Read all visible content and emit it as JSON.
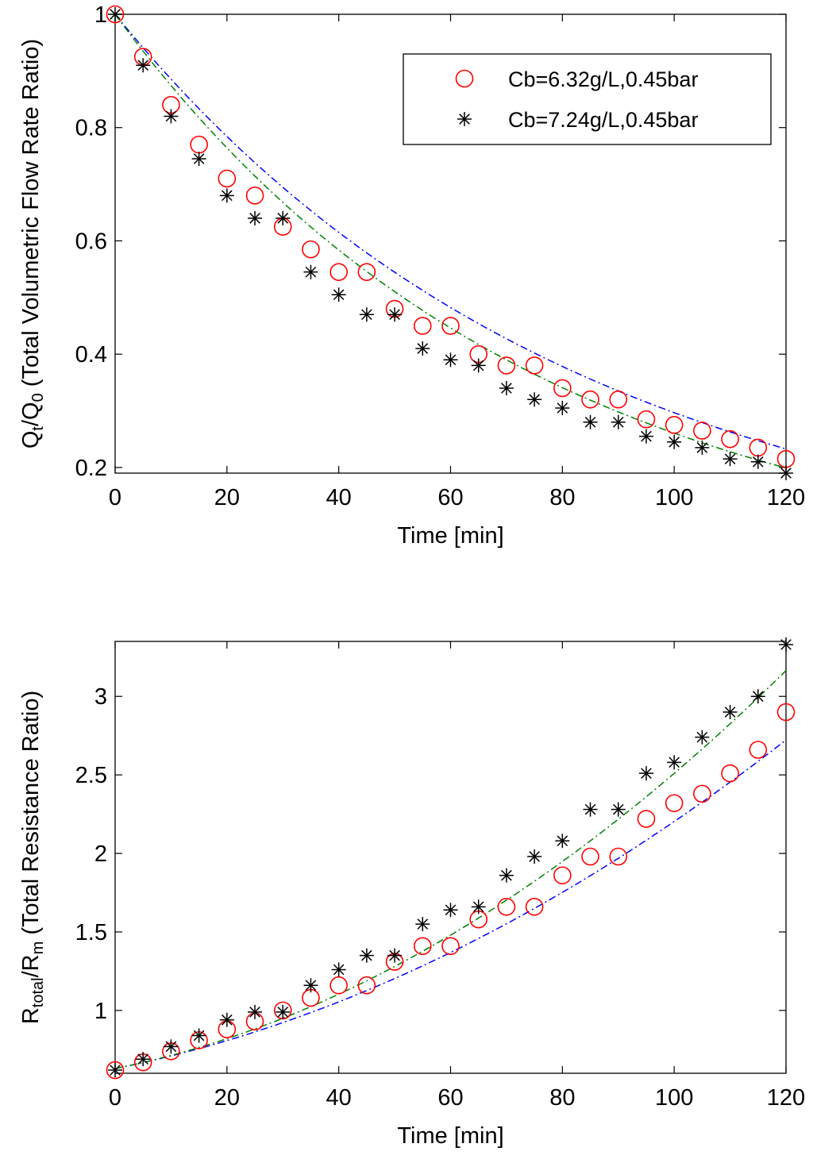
{
  "colors": {
    "circle": "#ff0000",
    "star": "#000000",
    "fit_circle": "#0000ff",
    "fit_star": "#008000",
    "axis": "#000000"
  },
  "chart_data": [
    {
      "type": "scatter",
      "title": "",
      "xlabel": "Time [min]",
      "ylabel": {
        "main1": "Q",
        "sub1": "t",
        "main2": "/Q",
        "sub2": "0",
        "rest": " (Total Volumetric Flow Rate Ratio)"
      },
      "xlim": [
        0,
        120
      ],
      "ylim": [
        0.19,
        1.0
      ],
      "xticks": [
        0,
        20,
        40,
        60,
        80,
        100,
        120
      ],
      "yticks": [
        0.2,
        0.4,
        0.6,
        0.8,
        1
      ],
      "ytick_labels": [
        "0.2",
        "0.4",
        "0.6",
        "0.8",
        "1"
      ],
      "grid": false,
      "legend": {
        "position": "top-right",
        "entries": [
          "Cb=6.32g/L,0.45bar",
          "Cb=7.24g/L,0.45bar"
        ]
      },
      "x": [
        0,
        5,
        10,
        15,
        20,
        25,
        30,
        35,
        40,
        45,
        50,
        55,
        60,
        65,
        70,
        75,
        80,
        85,
        90,
        95,
        100,
        105,
        110,
        115,
        120
      ],
      "series": [
        {
          "name": "Cb=6.32g/L,0.45bar",
          "marker": "circle",
          "values": [
            1.0,
            0.925,
            0.84,
            0.77,
            0.71,
            0.68,
            0.625,
            0.585,
            0.545,
            0.545,
            0.48,
            0.45,
            0.45,
            0.4,
            0.38,
            0.38,
            0.34,
            0.32,
            0.32,
            0.285,
            0.275,
            0.265,
            0.25,
            0.235,
            0.215
          ]
        },
        {
          "name": "Cb=7.24g/L,0.45bar",
          "marker": "star",
          "values": [
            1.0,
            0.91,
            0.82,
            0.745,
            0.68,
            0.64,
            0.64,
            0.545,
            0.505,
            0.47,
            0.47,
            0.41,
            0.39,
            0.38,
            0.34,
            0.32,
            0.305,
            0.28,
            0.28,
            0.255,
            0.245,
            0.235,
            0.215,
            0.21,
            0.19
          ]
        }
      ],
      "fits": [
        {
          "name": "fit-6.32",
          "style": "dash-dot",
          "color_key": "fit_circle",
          "model": "exp",
          "a": 1.0,
          "k": 0.01215
        },
        {
          "name": "fit-7.24",
          "style": "dash-dot",
          "color_key": "fit_star",
          "model": "exp",
          "a": 1.0,
          "k": 0.01345
        }
      ]
    },
    {
      "type": "scatter",
      "title": "",
      "xlabel": "Time [min]",
      "ylabel": {
        "main1": "R",
        "sub1": "total",
        "main2": "/R",
        "sub2": "m",
        "rest": " (Total Resistance Ratio)"
      },
      "xlim": [
        0,
        120
      ],
      "ylim": [
        0.6,
        3.35
      ],
      "xticks": [
        0,
        20,
        40,
        60,
        80,
        100,
        120
      ],
      "yticks": [
        1,
        1.5,
        2,
        2.5,
        3
      ],
      "ytick_labels": [
        "1",
        "1.5",
        "2",
        "2.5",
        "3"
      ],
      "grid": false,
      "x": [
        0,
        5,
        10,
        15,
        20,
        25,
        30,
        35,
        40,
        45,
        50,
        55,
        60,
        65,
        70,
        75,
        80,
        85,
        90,
        95,
        100,
        105,
        110,
        115,
        120
      ],
      "series": [
        {
          "name": "Cb=6.32g/L,0.45bar",
          "marker": "circle",
          "values": [
            0.62,
            0.67,
            0.74,
            0.81,
            0.88,
            0.93,
            1.0,
            1.08,
            1.16,
            1.16,
            1.31,
            1.41,
            1.41,
            1.58,
            1.66,
            1.66,
            1.86,
            1.98,
            1.98,
            2.22,
            2.32,
            2.38,
            2.51,
            2.66,
            2.9
          ]
        },
        {
          "name": "Cb=7.24g/L,0.45bar",
          "marker": "star",
          "values": [
            0.62,
            0.69,
            0.77,
            0.84,
            0.94,
            0.99,
            0.99,
            1.16,
            1.26,
            1.35,
            1.35,
            1.55,
            1.64,
            1.66,
            1.86,
            1.98,
            2.08,
            2.28,
            2.28,
            2.51,
            2.58,
            2.74,
            2.9,
            3.0,
            3.33
          ]
        }
      ],
      "fits": [
        {
          "name": "fit-6.32",
          "style": "dash-dot",
          "color_key": "fit_circle",
          "model": "quad",
          "a": 0.63,
          "b": 0.0072,
          "c": 8.53e-05
        },
        {
          "name": "fit-7.24",
          "style": "dash-dot",
          "color_key": "fit_star",
          "model": "quad",
          "a": 0.63,
          "b": 0.0072,
          "c": 0.000116
        }
      ]
    }
  ]
}
